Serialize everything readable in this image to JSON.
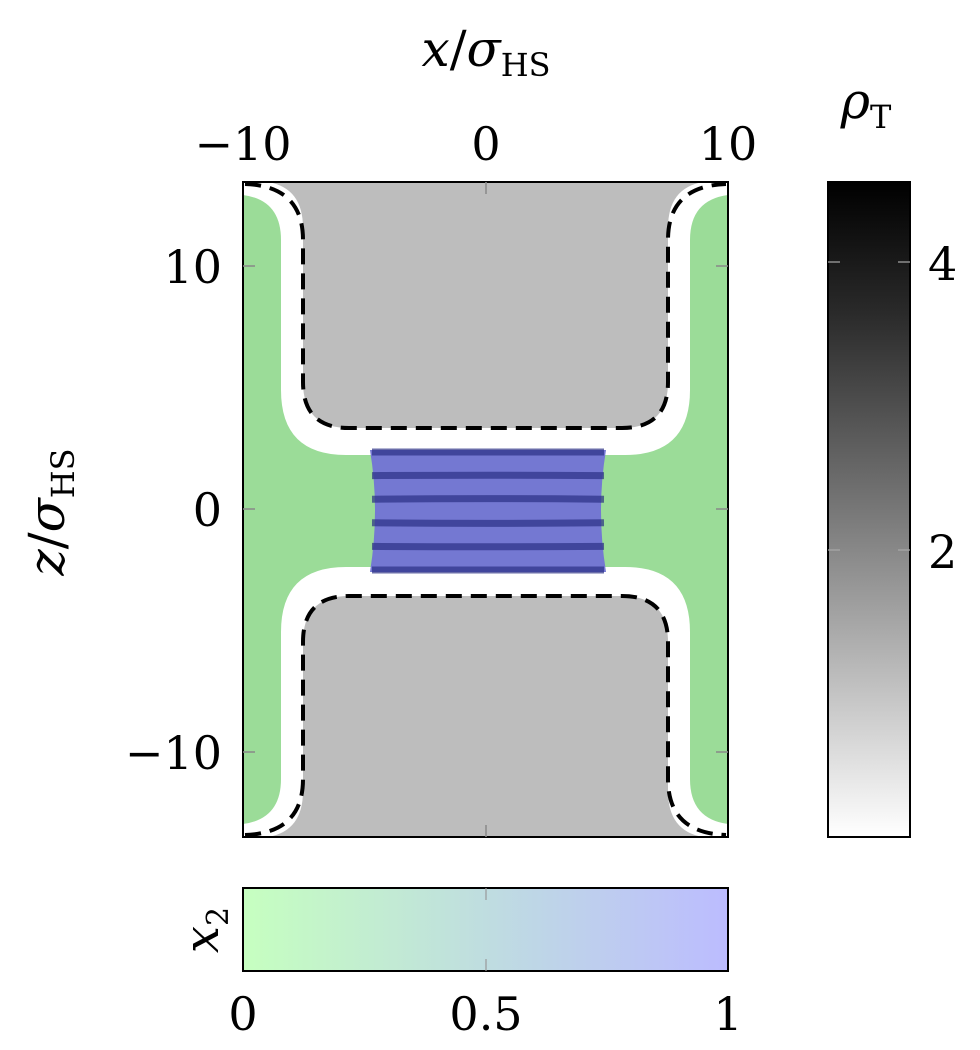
{
  "chart_data": [
    {
      "type": "heatmap",
      "title": "",
      "xlabel": "x/σHS",
      "ylabel": "z/σHS",
      "xlim": [
        -10,
        10
      ],
      "ylim": [
        -13.5,
        13.5
      ],
      "x_ticks": [
        "−10",
        "0",
        "10"
      ],
      "y_ticks": [
        "10",
        "0",
        "−10"
      ],
      "regions": [
        {
          "label": "wall (solid)",
          "fill": "#bdbdbd"
        },
        {
          "label": "reservoir, x2 ≈ 0",
          "fill": "#9bdc98"
        },
        {
          "label": "confined slit, x2 ≈ 1 (layered)",
          "fill": "#6e72cf"
        }
      ]
    },
    {
      "type": "heatmap",
      "colorbar": "rho_T",
      "label": "ρT",
      "ticks": [
        "4",
        "2"
      ],
      "range": [
        0.8,
        4.6
      ],
      "colors": [
        "#ffffff",
        "#bbbbbb",
        "#777777",
        "#2a2a2a",
        "#000000"
      ]
    },
    {
      "type": "heatmap",
      "colorbar": "x_2",
      "label": "x2",
      "ticks": [
        "0",
        "0.5",
        "1"
      ],
      "range": [
        0,
        1
      ],
      "colors": [
        "#c6ffc0",
        "#bcd8ff",
        "#bcbcff"
      ]
    }
  ],
  "labels": {
    "xlabel_main": "x",
    "xlabel_sub": "HS",
    "ylabel_main": "z",
    "ylabel_sub": "HS",
    "sigma": "σ",
    "slash": "/",
    "rho": "ρ",
    "rho_sub": "T",
    "x2_main": "x",
    "x2_sub": "2"
  },
  "x_ticks": [
    "−10",
    "0",
    "10"
  ],
  "y_ticks": [
    "10",
    "0",
    "−10"
  ],
  "rho_ticks": [
    "4",
    "2"
  ],
  "x2_ticks": [
    "0",
    "0.5",
    "1"
  ]
}
